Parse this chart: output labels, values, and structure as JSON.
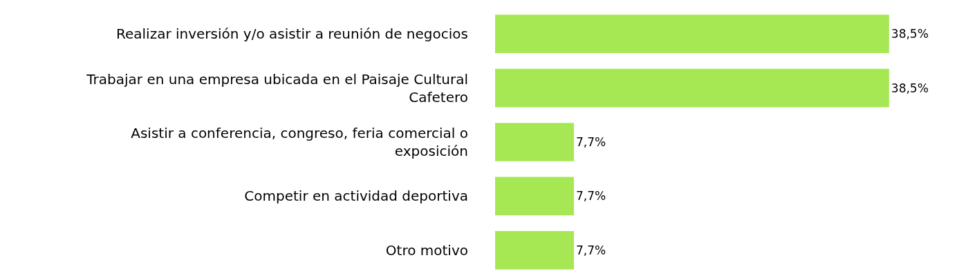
{
  "chart_data": {
    "type": "bar",
    "orientation": "horizontal",
    "categories": [
      "Realizar inversión y/o asistir a reunión de negocios",
      "Trabajar en una empresa ubicada en el Paisaje Cultural Cafetero",
      "Asistir a conferencia, congreso, feria comercial o exposición",
      "Competir en actividad deportiva",
      "Otro motivo"
    ],
    "values": [
      38.5,
      38.5,
      7.7,
      7.7,
      7.7
    ],
    "color": "#a6e854",
    "value_labels": [
      "38,5%",
      "38,5%",
      "7,7%",
      "7,7%",
      "7,7%"
    ],
    "tick_labels": "y"
  }
}
